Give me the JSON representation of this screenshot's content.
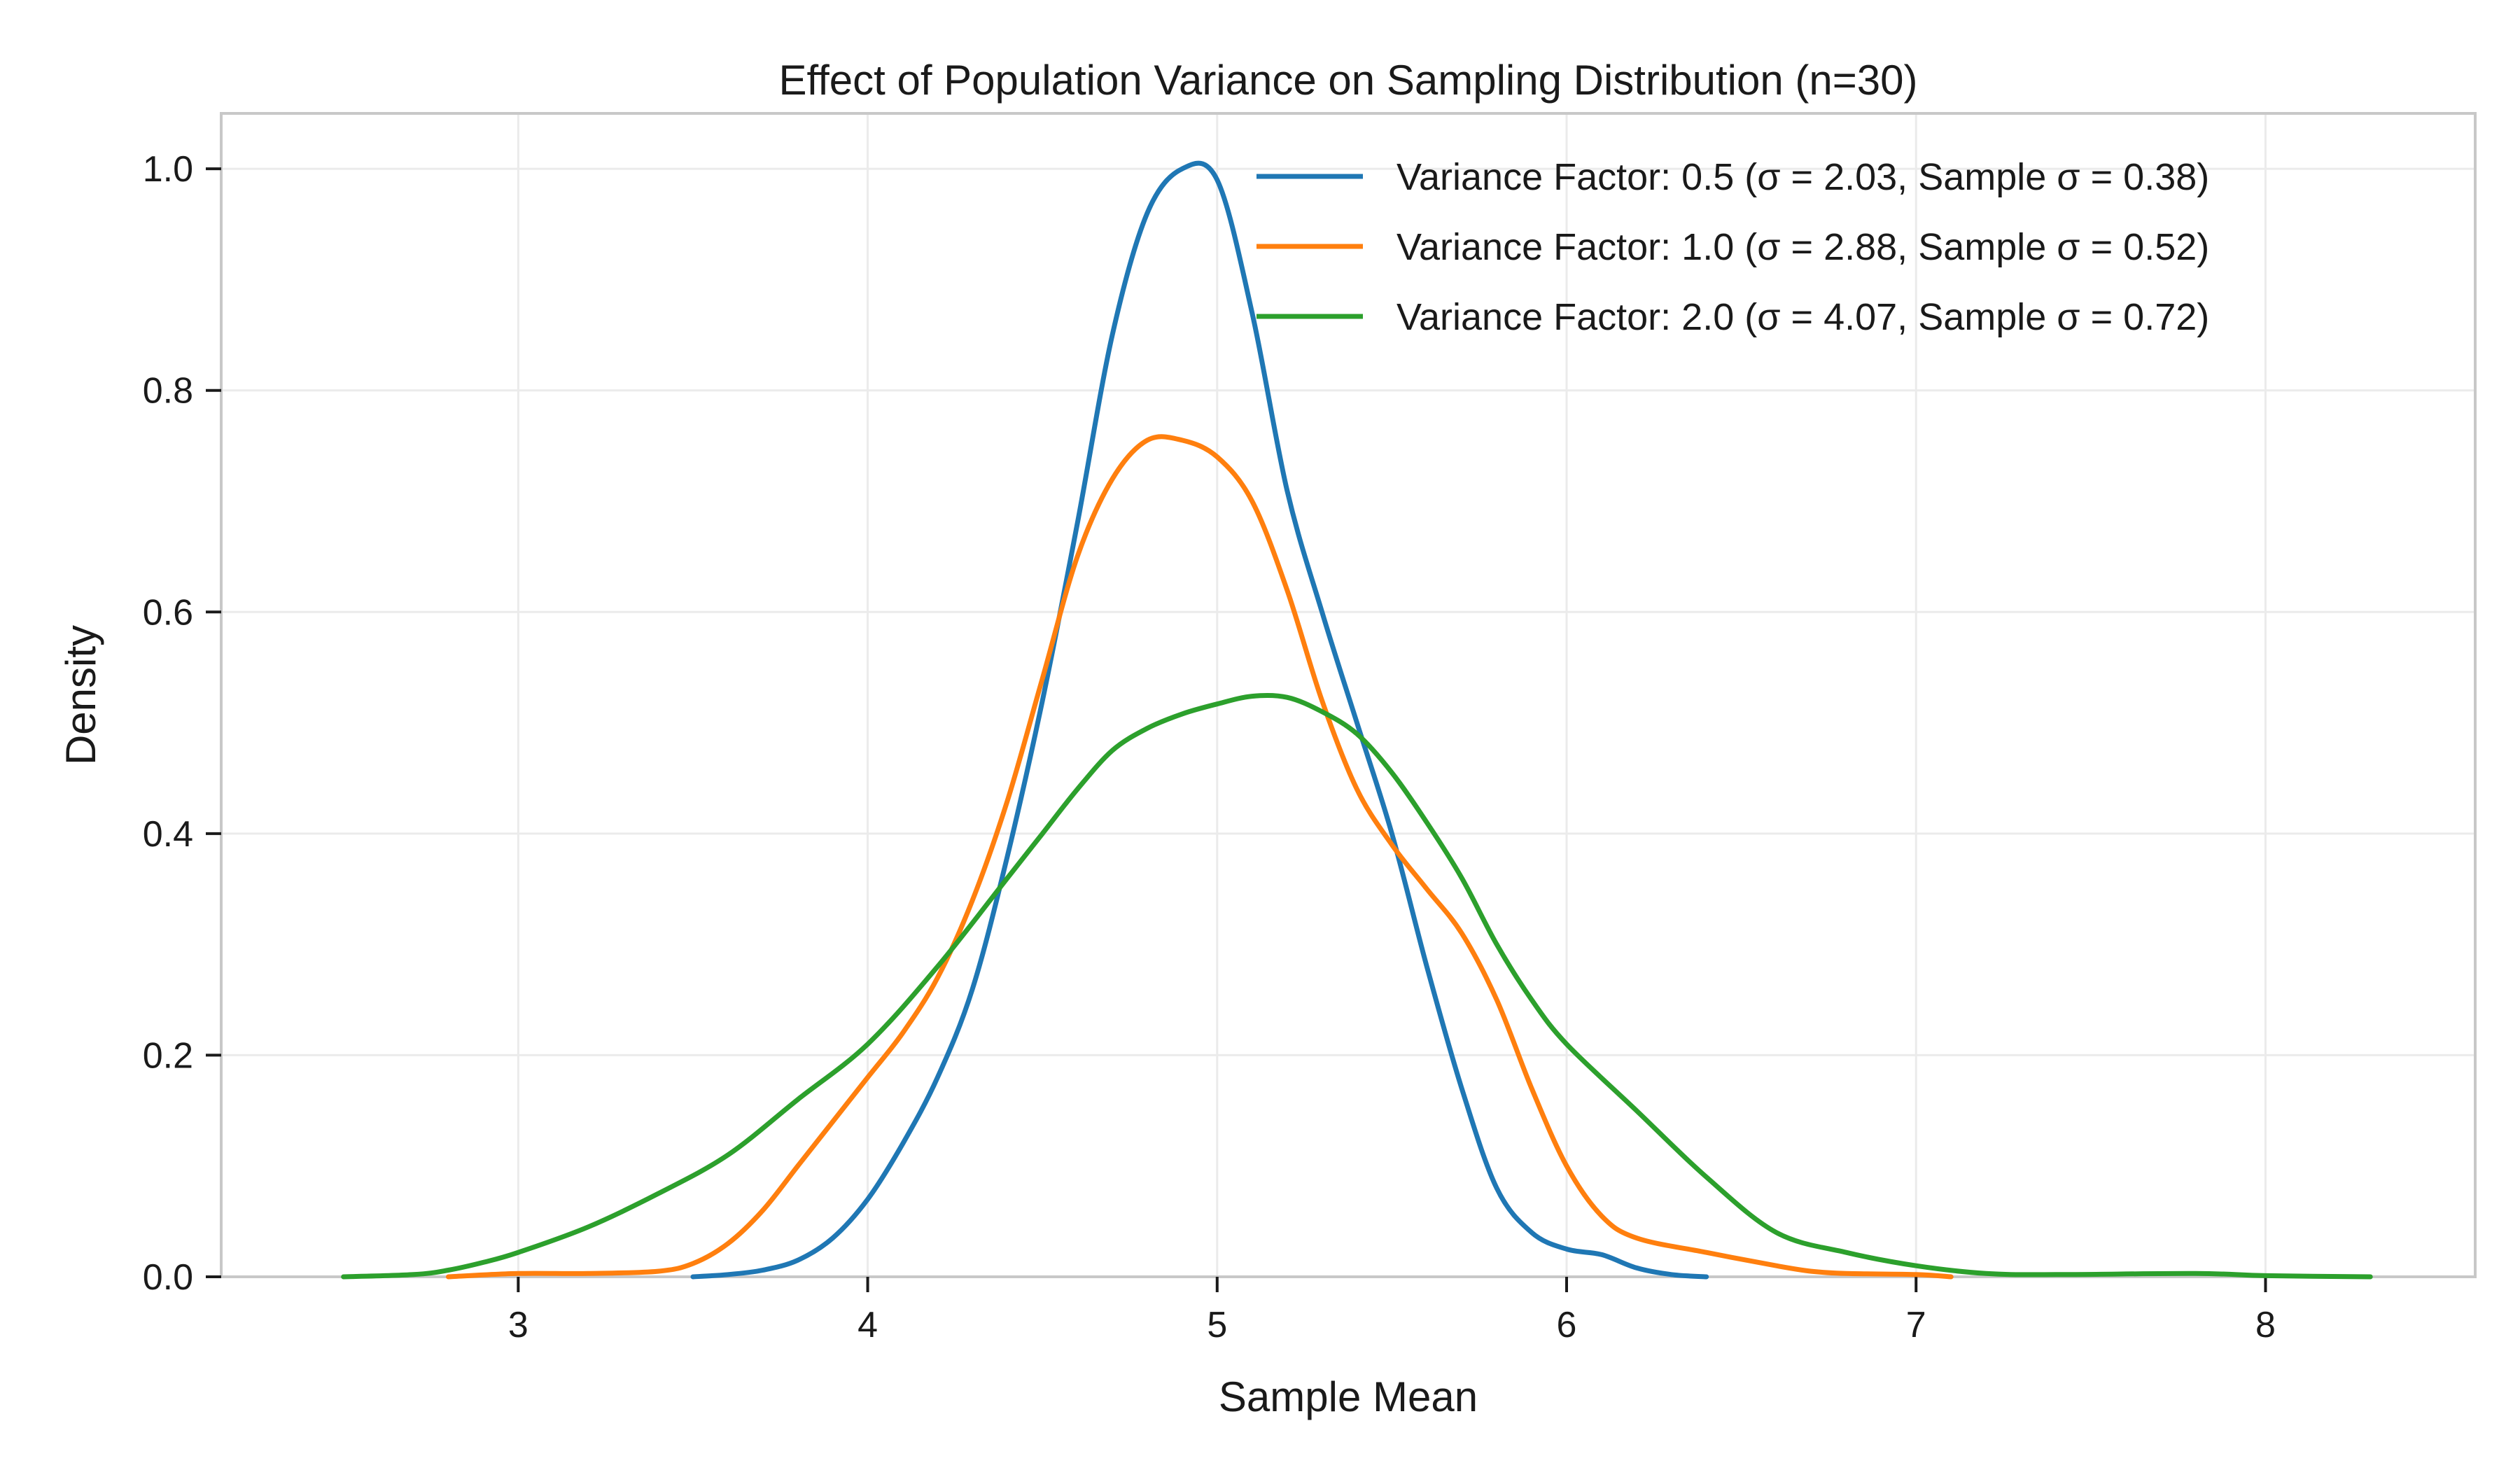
{
  "chart_data": {
    "type": "line",
    "title": "Effect of Population Variance on Sampling Distribution (n=30)",
    "xlabel": "Sample Mean",
    "ylabel": "Density",
    "xlim": [
      2.15,
      8.6
    ],
    "ylim": [
      0.0,
      1.05
    ],
    "xticks": [
      3,
      4,
      5,
      6,
      7,
      8
    ],
    "yticks": [
      0.0,
      0.2,
      0.4,
      0.6,
      0.8,
      1.0
    ],
    "x_tick_labels": [
      "3",
      "4",
      "5",
      "6",
      "7",
      "8"
    ],
    "y_tick_labels": [
      "0.0",
      "0.2",
      "0.4",
      "0.6",
      "0.8",
      "1.0"
    ],
    "grid": true,
    "legend_position": "top-right",
    "series": [
      {
        "name": "Variance Factor: 0.5 (σ = 2.03, Sample σ = 0.38)",
        "color": "#1f77b4",
        "points": [
          [
            3.5,
            0.0
          ],
          [
            3.6,
            0.002
          ],
          [
            3.7,
            0.006
          ],
          [
            3.8,
            0.015
          ],
          [
            3.9,
            0.035
          ],
          [
            4.0,
            0.07
          ],
          [
            4.1,
            0.12
          ],
          [
            4.2,
            0.18
          ],
          [
            4.3,
            0.26
          ],
          [
            4.4,
            0.38
          ],
          [
            4.5,
            0.52
          ],
          [
            4.6,
            0.68
          ],
          [
            4.7,
            0.85
          ],
          [
            4.8,
            0.96
          ],
          [
            4.9,
            1.0
          ],
          [
            5.0,
            0.99
          ],
          [
            5.1,
            0.87
          ],
          [
            5.2,
            0.71
          ],
          [
            5.3,
            0.6
          ],
          [
            5.4,
            0.5
          ],
          [
            5.5,
            0.4
          ],
          [
            5.6,
            0.28
          ],
          [
            5.7,
            0.17
          ],
          [
            5.8,
            0.08
          ],
          [
            5.9,
            0.04
          ],
          [
            6.0,
            0.025
          ],
          [
            6.1,
            0.02
          ],
          [
            6.2,
            0.008
          ],
          [
            6.3,
            0.002
          ],
          [
            6.4,
            0.0
          ]
        ]
      },
      {
        "name": "Variance Factor: 1.0 (σ = 2.88, Sample σ = 0.52)",
        "color": "#ff7f0e",
        "points": [
          [
            2.8,
            0.0
          ],
          [
            3.0,
            0.003
          ],
          [
            3.2,
            0.003
          ],
          [
            3.4,
            0.005
          ],
          [
            3.5,
            0.012
          ],
          [
            3.6,
            0.03
          ],
          [
            3.7,
            0.06
          ],
          [
            3.8,
            0.1
          ],
          [
            3.9,
            0.14
          ],
          [
            4.0,
            0.18
          ],
          [
            4.1,
            0.22
          ],
          [
            4.2,
            0.27
          ],
          [
            4.3,
            0.34
          ],
          [
            4.4,
            0.43
          ],
          [
            4.5,
            0.54
          ],
          [
            4.6,
            0.65
          ],
          [
            4.7,
            0.72
          ],
          [
            4.8,
            0.755
          ],
          [
            4.9,
            0.755
          ],
          [
            5.0,
            0.74
          ],
          [
            5.1,
            0.7
          ],
          [
            5.2,
            0.62
          ],
          [
            5.3,
            0.52
          ],
          [
            5.4,
            0.44
          ],
          [
            5.5,
            0.39
          ],
          [
            5.6,
            0.35
          ],
          [
            5.7,
            0.31
          ],
          [
            5.8,
            0.25
          ],
          [
            5.9,
            0.17
          ],
          [
            6.0,
            0.1
          ],
          [
            6.1,
            0.055
          ],
          [
            6.2,
            0.035
          ],
          [
            6.4,
            0.022
          ],
          [
            6.6,
            0.01
          ],
          [
            6.7,
            0.005
          ],
          [
            6.8,
            0.003
          ],
          [
            7.0,
            0.002
          ],
          [
            7.1,
            0.0
          ]
        ]
      },
      {
        "name": "Variance Factor: 2.0 (σ = 4.07, Sample σ = 0.72)",
        "color": "#2ca02c",
        "points": [
          [
            2.5,
            0.0
          ],
          [
            2.7,
            0.002
          ],
          [
            2.8,
            0.006
          ],
          [
            2.9,
            0.013
          ],
          [
            3.0,
            0.022
          ],
          [
            3.2,
            0.045
          ],
          [
            3.4,
            0.075
          ],
          [
            3.6,
            0.11
          ],
          [
            3.8,
            0.16
          ],
          [
            4.0,
            0.21
          ],
          [
            4.2,
            0.28
          ],
          [
            4.4,
            0.36
          ],
          [
            4.5,
            0.4
          ],
          [
            4.6,
            0.44
          ],
          [
            4.7,
            0.475
          ],
          [
            4.8,
            0.495
          ],
          [
            4.9,
            0.508
          ],
          [
            5.0,
            0.517
          ],
          [
            5.1,
            0.524
          ],
          [
            5.2,
            0.523
          ],
          [
            5.3,
            0.51
          ],
          [
            5.4,
            0.49
          ],
          [
            5.5,
            0.455
          ],
          [
            5.6,
            0.41
          ],
          [
            5.7,
            0.36
          ],
          [
            5.8,
            0.3
          ],
          [
            5.9,
            0.25
          ],
          [
            6.0,
            0.21
          ],
          [
            6.2,
            0.15
          ],
          [
            6.4,
            0.09
          ],
          [
            6.6,
            0.04
          ],
          [
            6.8,
            0.022
          ],
          [
            7.0,
            0.01
          ],
          [
            7.2,
            0.003
          ],
          [
            7.4,
            0.002
          ],
          [
            7.8,
            0.003
          ],
          [
            8.0,
            0.001
          ],
          [
            8.3,
            0.0
          ]
        ]
      }
    ]
  }
}
